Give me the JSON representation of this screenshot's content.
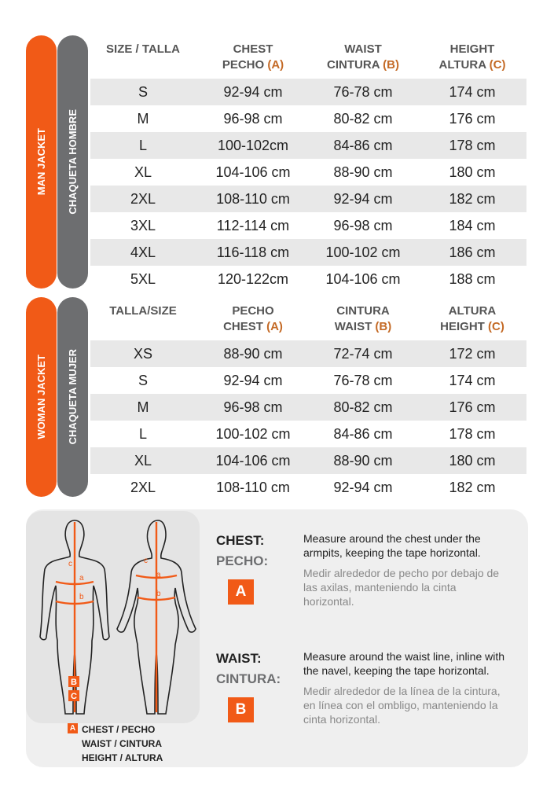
{
  "sections": [
    {
      "label": "MAN JACKET",
      "label_es": "CHAQUETA HOMBRE",
      "headers": [
        {
          "line1": "SIZE / TALLA"
        },
        {
          "line1": "CHEST",
          "line2": "PECHO",
          "letter": "(A)"
        },
        {
          "line1": "WAIST",
          "line2": "CINTURA",
          "letter": "(B)"
        },
        {
          "line1": "HEIGHT",
          "line2": "ALTURA",
          "letter": "(C)"
        }
      ],
      "rows": [
        [
          "S",
          "92-94 cm",
          "76-78 cm",
          "174 cm"
        ],
        [
          "M",
          "96-98 cm",
          "80-82 cm",
          "176 cm"
        ],
        [
          "L",
          "100-102cm",
          "84-86 cm",
          "178 cm"
        ],
        [
          "XL",
          "104-106 cm",
          "88-90 cm",
          "180 cm"
        ],
        [
          "2XL",
          "108-110 cm",
          "92-94 cm",
          "182 cm"
        ],
        [
          "3XL",
          "112-114 cm",
          "96-98 cm",
          "184 cm"
        ],
        [
          "4XL",
          "116-118 cm",
          "100-102 cm",
          "186 cm"
        ],
        [
          "5XL",
          "120-122cm",
          "104-106 cm",
          "188 cm"
        ]
      ]
    },
    {
      "label": "WOMAN JACKET",
      "label_es": "CHAQUETA MUJER",
      "headers": [
        {
          "line1": "TALLA/SIZE"
        },
        {
          "line1": "PECHO",
          "line2": "CHEST",
          "letter": "(A)"
        },
        {
          "line1": "CINTURA",
          "line2": "WAIST",
          "letter": "(B)"
        },
        {
          "line1": "ALTURA",
          "line2": "HEIGHT",
          "letter": "(C)"
        }
      ],
      "rows": [
        [
          "XS",
          "88-90 cm",
          "72-74 cm",
          "172 cm"
        ],
        [
          "S",
          "92-94 cm",
          "76-78 cm",
          "174 cm"
        ],
        [
          "M",
          "96-98 cm",
          "80-82 cm",
          "176 cm"
        ],
        [
          "L",
          "100-102 cm",
          "84-86 cm",
          "178 cm"
        ],
        [
          "XL",
          "104-106 cm",
          "88-90 cm",
          "180 cm"
        ],
        [
          "2XL",
          "108-110 cm",
          "92-94 cm",
          "182 cm"
        ]
      ]
    }
  ],
  "figure_labels": {
    "c": "c",
    "a": "a",
    "b": "b",
    "B": "B",
    "C": "C"
  },
  "legend": {
    "badge": "A",
    "items": [
      "CHEST / PECHO",
      "WAIST / CINTURA",
      "HEIGHT / ALTURA"
    ]
  },
  "measures": [
    {
      "title": "CHEST:",
      "subtitle": "PECHO:",
      "badge": "A",
      "text_en": "Measure around the chest under the armpits, keeping the tape horizontal.",
      "text_es": "Medir alrededor de pecho por debajo de las axilas, manteniendo la cinta horizontal."
    },
    {
      "title": "WAIST:",
      "subtitle": "CINTURA:",
      "badge": "B",
      "text_en": "Measure around the waist line, inline with the navel, keeping the tape horizontal.",
      "text_es": "Medir alrededor de la línea de la cintura, en línea con el ombligo, manteniendo la cinta horizontal."
    }
  ]
}
